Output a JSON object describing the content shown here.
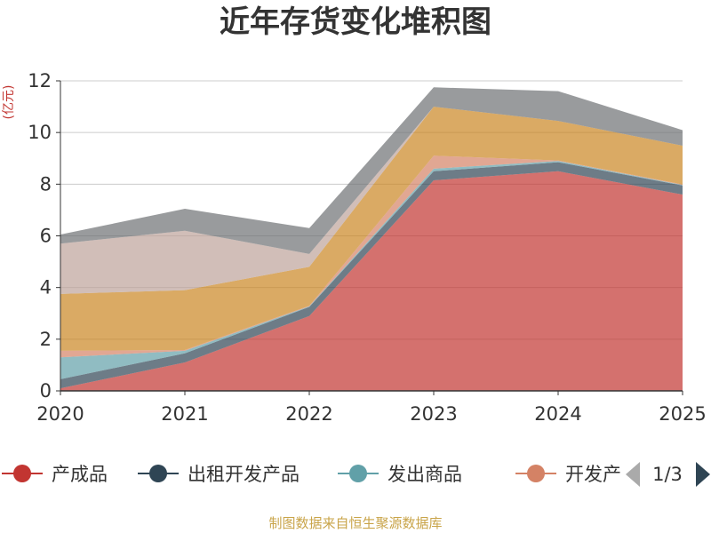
{
  "chart_data": {
    "type": "area",
    "stacked": true,
    "title": "近年存货变化堆积图",
    "ylabel": "(亿元)",
    "categories": [
      "2020",
      "2021",
      "2022",
      "2023",
      "2024",
      "2025"
    ],
    "ylim": [
      0,
      12
    ],
    "yticks": [
      0,
      2,
      4,
      6,
      8,
      10,
      12
    ],
    "grid": true,
    "series": [
      {
        "name": "产成品",
        "color": "#c23531",
        "values": [
          0.1,
          1.1,
          2.9,
          8.15,
          8.5,
          7.6
        ]
      },
      {
        "name": "出租开发产品",
        "color": "#2f4554",
        "values": [
          0.35,
          0.35,
          0.35,
          0.35,
          0.35,
          0.35
        ]
      },
      {
        "name": "发出商品",
        "color": "#61a0a8",
        "values": [
          0.85,
          0.1,
          0.02,
          0.1,
          0.05,
          0.02
        ]
      },
      {
        "name": "开发产品",
        "color": "#d48265",
        "values": [
          0.25,
          0.03,
          0.02,
          0.5,
          0.02,
          0.02
        ]
      },
      {
        "name": "",
        "color": "#91c7ae",
        "values": [
          0.0,
          0.0,
          0.0,
          0.0,
          0.0,
          0.0
        ]
      },
      {
        "name": "",
        "color": "#ca8622",
        "values": [
          2.2,
          2.32,
          1.51,
          1.9,
          1.53,
          1.5
        ]
      },
      {
        "name": "",
        "color": "#bda29a",
        "values": [
          1.95,
          2.3,
          0.5,
          0.0,
          0.0,
          0.0
        ]
      },
      {
        "name": "",
        "color": "#6e7074",
        "values": [
          0.35,
          0.85,
          1.0,
          0.75,
          1.15,
          0.6
        ]
      }
    ]
  },
  "legend": {
    "items": [
      {
        "name": "产成品",
        "color": "#c23531"
      },
      {
        "name": "出租开发产品",
        "color": "#2f4554"
      },
      {
        "name": "发出商品",
        "color": "#61a0a8"
      },
      {
        "name": "开发产",
        "color": "#d48265"
      }
    ],
    "page": "1/3"
  },
  "source": "制图数据来自恒生聚源数据库"
}
